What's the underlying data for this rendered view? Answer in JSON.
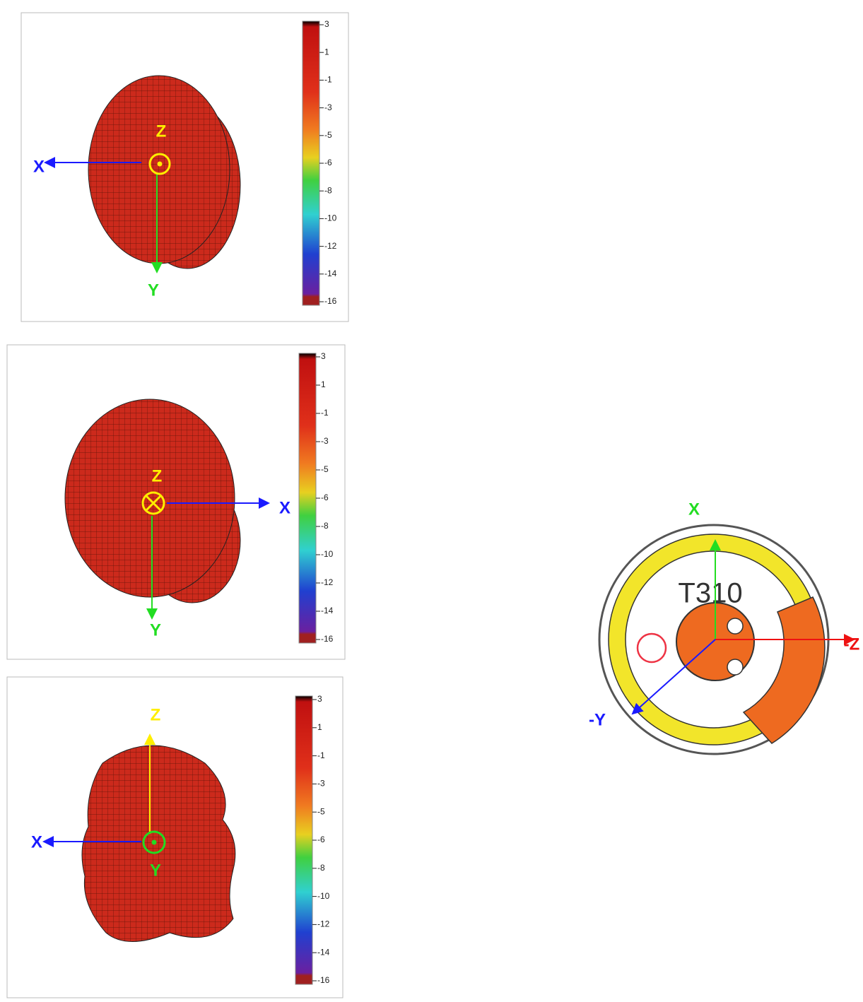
{
  "panels": [
    {
      "axes": [
        "Z",
        "X",
        "Y"
      ],
      "colorbar_ticks": [
        3,
        1,
        -1,
        -3,
        -5,
        -6,
        -8,
        -10,
        -12,
        -14,
        -16
      ]
    },
    {
      "axes": [
        "Z",
        "X",
        "Y"
      ],
      "colorbar_ticks": [
        3,
        1,
        -1,
        -3,
        -5,
        -6,
        -8,
        -10,
        -12,
        -14,
        -16
      ]
    },
    {
      "axes": [
        "Z",
        "X",
        "Y"
      ],
      "colorbar_ticks": [
        3,
        1,
        -1,
        -3,
        -5,
        -6,
        -8,
        -10,
        -12,
        -14,
        -16
      ]
    }
  ],
  "diagram": {
    "label": "T310",
    "axes": [
      "X",
      "-Z",
      "-Y"
    ]
  }
}
